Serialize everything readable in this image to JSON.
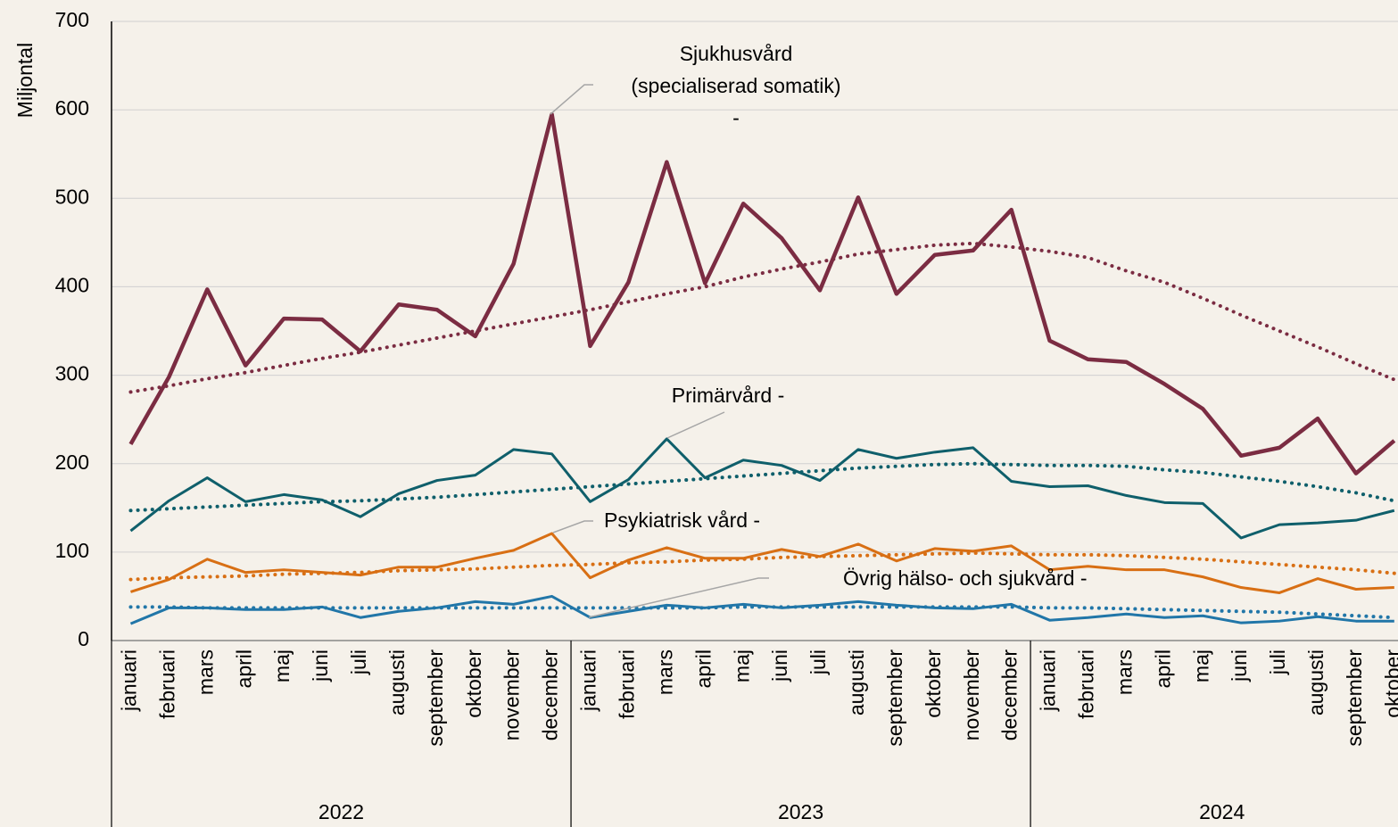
{
  "chart_data": {
    "type": "line",
    "ylabel": "Miljontal",
    "category_groups": [
      {
        "label": "2022",
        "categories": [
          "januari",
          "februari",
          "mars",
          "april",
          "maj",
          "juni",
          "juli",
          "augusti",
          "september",
          "oktober",
          "november",
          "december"
        ]
      },
      {
        "label": "2023",
        "categories": [
          "januari",
          "februari",
          "mars",
          "april",
          "maj",
          "juni",
          "juli",
          "augusti",
          "september",
          "oktober",
          "november",
          "december"
        ]
      },
      {
        "label": "2024",
        "categories": [
          "januari",
          "februari",
          "mars",
          "april",
          "maj",
          "juni",
          "juli",
          "augusti",
          "september",
          "oktober"
        ]
      }
    ],
    "ylim": [
      0,
      700
    ],
    "yticks": [
      0,
      100,
      200,
      300,
      400,
      500,
      600,
      700
    ],
    "grid": true,
    "series": [
      {
        "label": [
          "Sjukhusvård",
          "(specialiserad somatik)",
          "-"
        ],
        "color": "#7b2c42",
        "values": [
          222,
          298,
          397,
          311,
          364,
          363,
          327,
          380,
          374,
          344,
          426,
          595,
          333,
          405,
          541,
          404,
          494,
          455,
          396,
          501,
          392,
          436,
          441,
          487,
          339,
          318,
          315,
          290,
          262,
          209,
          218,
          251,
          189,
          226
        ],
        "trend": [
          281,
          288,
          296,
          303,
          311,
          319,
          326,
          334,
          342,
          350,
          358,
          366,
          374,
          383,
          392,
          400,
          411,
          420,
          428,
          437,
          442,
          447,
          449,
          445,
          440,
          433,
          418,
          405,
          387,
          368,
          350,
          332,
          313,
          295
        ]
      },
      {
        "label": [
          "Primärvård -"
        ],
        "color": "#0f5f6b",
        "values": [
          124,
          158,
          184,
          157,
          165,
          159,
          140,
          166,
          181,
          187,
          216,
          211,
          157,
          182,
          228,
          184,
          204,
          198,
          181,
          216,
          206,
          213,
          218,
          180,
          174,
          175,
          164,
          156,
          155,
          116,
          131,
          133,
          136,
          147
        ],
        "trend": [
          147,
          149,
          151,
          153,
          155,
          157,
          158,
          160,
          162,
          165,
          168,
          171,
          174,
          177,
          180,
          183,
          186,
          189,
          192,
          195,
          197,
          199,
          200,
          199,
          198,
          198,
          197,
          193,
          190,
          185,
          180,
          174,
          167,
          158
        ]
      },
      {
        "label": [
          "Psykiatrisk vård -"
        ],
        "color": "#d86f14",
        "values": [
          55,
          69,
          92,
          77,
          80,
          77,
          74,
          83,
          83,
          93,
          102,
          121,
          71,
          91,
          105,
          93,
          93,
          103,
          95,
          109,
          90,
          104,
          101,
          107,
          80,
          84,
          80,
          80,
          72,
          60,
          54,
          70,
          58,
          60
        ],
        "trend": [
          69,
          71,
          72,
          73,
          75,
          76,
          77,
          79,
          80,
          81,
          83,
          85,
          86,
          88,
          89,
          91,
          92,
          94,
          95,
          96,
          97,
          98,
          99,
          98,
          97,
          97,
          96,
          94,
          92,
          89,
          86,
          83,
          80,
          76
        ]
      },
      {
        "label": [
          "Övrig hälso- och sjukvård -"
        ],
        "color": "#2176a8",
        "values": [
          19,
          37,
          37,
          35,
          35,
          38,
          26,
          33,
          37,
          44,
          41,
          50,
          26,
          33,
          40,
          37,
          41,
          37,
          40,
          44,
          40,
          37,
          36,
          41,
          23,
          26,
          30,
          26,
          28,
          20,
          22,
          27,
          22,
          22
        ],
        "trend": [
          38,
          38,
          37,
          37,
          37,
          37,
          37,
          37,
          37,
          37,
          37,
          37,
          37,
          37,
          37,
          37,
          38,
          38,
          38,
          38,
          38,
          38,
          38,
          38,
          37,
          37,
          36,
          35,
          34,
          33,
          32,
          30,
          28,
          26
        ]
      }
    ]
  }
}
